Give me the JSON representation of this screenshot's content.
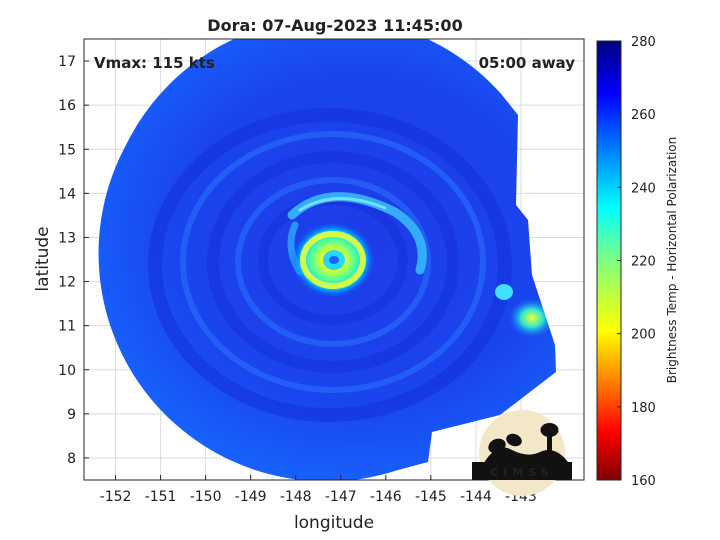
{
  "chart_data": {
    "type": "heatmap",
    "title": "Dora: 07-Aug-2023 11:45:00",
    "xlabel": "longitude",
    "ylabel": "latitude",
    "xlim": [
      -152.7,
      -141.6
    ],
    "ylim": [
      7.5,
      17.5
    ],
    "x_ticks": [
      -152,
      -151,
      -150,
      -149,
      -148,
      -147,
      -146,
      -145,
      -144,
      -143
    ],
    "y_ticks": [
      8,
      9,
      10,
      11,
      12,
      13,
      14,
      15,
      16,
      17
    ],
    "grid": true,
    "annotations": {
      "vmax": "Vmax: 115 kts",
      "time_away": "05:00 away"
    },
    "colorbar": {
      "label": "Brightness Temp - Horizontal Polarization",
      "range": [
        160,
        280
      ],
      "ticks": [
        160,
        180,
        200,
        220,
        240,
        260,
        280
      ],
      "colormap": "jet"
    },
    "storm_center": {
      "lon": -147.0,
      "lat": 12.45
    },
    "features": [
      {
        "name": "eye",
        "lon": -147.0,
        "lat": 12.45,
        "min_temp": 210
      },
      {
        "name": "eyewall",
        "lon": -147.0,
        "lat": 12.45,
        "temp": 232
      },
      {
        "name": "outer band",
        "lon": -146.9,
        "lat": 13.6,
        "temp": 245
      },
      {
        "name": "convective cluster",
        "lon": -143.2,
        "lat": 11.15,
        "temp": 228
      }
    ],
    "background_temp": 262
  },
  "logo": {
    "text": "CIMSS"
  }
}
